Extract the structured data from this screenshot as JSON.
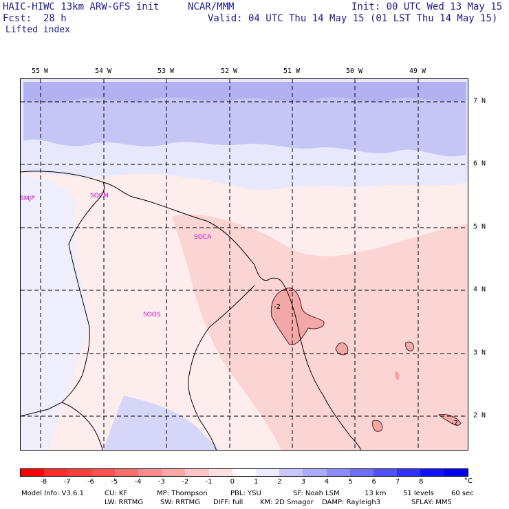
{
  "header": {
    "model": "HAIC-HIWC 13km ARW-GFS init",
    "org": "NCAR/MMM",
    "init": "Init: 00 UTC Wed 13 May 15",
    "fcst_label": "Fcst:",
    "fcst_value": "28 h",
    "valid": "Valid: 04 UTC Thu 14 May 15 (01 LST Thu 14 May 15)",
    "field": "Lifted index"
  },
  "map": {
    "lon_labels": [
      "55 W",
      "54 W",
      "53 W",
      "52 W",
      "51 W",
      "50 W",
      "49 W"
    ],
    "lat_labels": [
      "7 N",
      "6 N",
      "5 N",
      "4 N",
      "3 N",
      "2 N"
    ],
    "stations": [
      "SMJP",
      "SOCM",
      "SOCA",
      "SOOS"
    ],
    "contour_labels": [
      "-2",
      "-2"
    ]
  },
  "colorbar": {
    "ticks": [
      "-8",
      "-7",
      "-6",
      "-5",
      "-4",
      "-3",
      "-2",
      "-1",
      "0",
      "1",
      "2",
      "3",
      "4",
      "5",
      "6",
      "7",
      "8"
    ],
    "unit": "°C",
    "colors": [
      "#ff0000",
      "#ff2a2a",
      "#ff3c3c",
      "#ff5050",
      "#ff6e6e",
      "#ff8c8c",
      "#ffa6a6",
      "#ffc4c4",
      "#ffe0e0",
      "#ffffff",
      "#ececff",
      "#c8c8ff",
      "#aaaaff",
      "#8c8cff",
      "#6e6eff",
      "#5050ff",
      "#3232ff",
      "#1010ff",
      "#0000ee"
    ]
  },
  "footer": {
    "model_info": "Model Info: V3.6.1",
    "cu": "CU: KF",
    "mp": "MP: Thompson",
    "pbl": "PBL: YSU",
    "sf": "SF: Noah LSM",
    "res": "13 km",
    "levels": "51 levels",
    "dt": "60 sec",
    "lw": "LW: RRTMG",
    "sw": "SW: RRTMG",
    "diff": "DIFF: full",
    "km": "KM: 2D Smagor",
    "damp": "DAMP: Rayleigh3",
    "sflay": "SFLAY: MM5"
  }
}
